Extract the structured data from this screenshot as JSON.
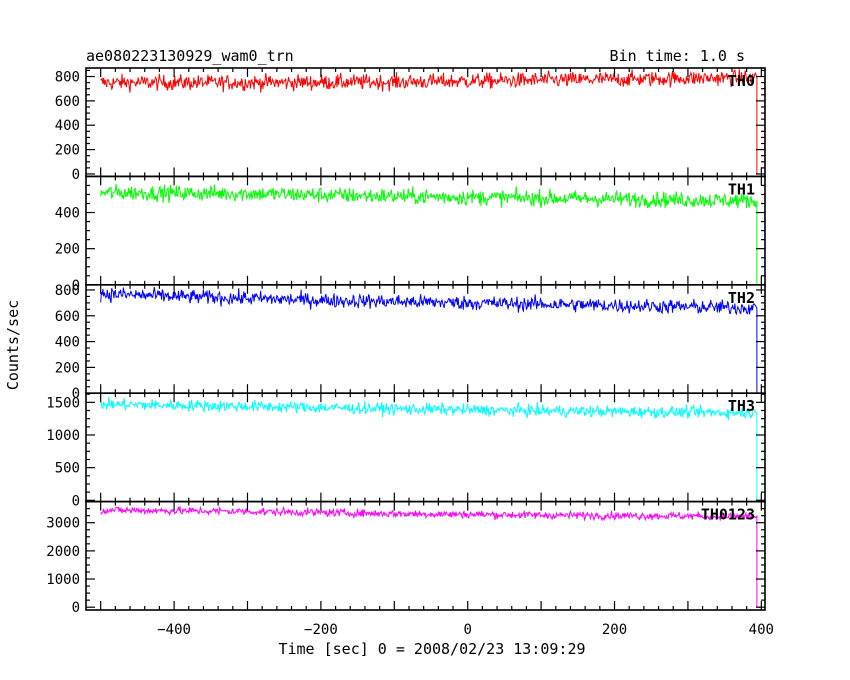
{
  "chart_data": {
    "type": "line",
    "title": "ae080223130929_wam0_trn",
    "subtitle": "Bin time: 1.0 s",
    "xlabel": "Time [sec] 0 = 2008/02/23 13:09:29",
    "ylabel": "Counts/sec",
    "xlim": [
      -520,
      405
    ],
    "x_ticks": [
      -400,
      -200,
      0,
      200,
      400
    ],
    "x_tick_labels": [
      "−400",
      "−200",
      "0",
      "200",
      "400"
    ],
    "x_start": -500,
    "x_end": 392,
    "x_drop": 394,
    "x_stub": 400,
    "grid": false,
    "panels": [
      {
        "name": "TH0",
        "color": "#ff0000",
        "ylim": [
          -20,
          870
        ],
        "y_ticks": [
          0,
          200,
          400,
          600,
          800
        ],
        "trend": [
          [
            -500,
            750
          ],
          [
            -300,
            750
          ],
          [
            -100,
            755
          ],
          [
            100,
            770
          ],
          [
            300,
            785
          ],
          [
            392,
            790
          ]
        ],
        "noise": 32,
        "stub_value": 0
      },
      {
        "name": "TH1",
        "color": "#00ff00",
        "ylim": [
          0,
          600
        ],
        "y_ticks": [
          0,
          200,
          400
        ],
        "trend": [
          [
            -500,
            510
          ],
          [
            -300,
            505
          ],
          [
            -100,
            490
          ],
          [
            100,
            480
          ],
          [
            300,
            470
          ],
          [
            392,
            465
          ]
        ],
        "noise": 22,
        "stub_value": 0
      },
      {
        "name": "TH2",
        "color": "#0000ff",
        "ylim": [
          0,
          840
        ],
        "y_ticks": [
          0,
          200,
          400,
          600,
          800
        ],
        "trend": [
          [
            -500,
            770
          ],
          [
            -400,
            750
          ],
          [
            -200,
            720
          ],
          [
            0,
            700
          ],
          [
            200,
            680
          ],
          [
            392,
            660
          ]
        ],
        "noise": 28,
        "stub_value": 0
      },
      {
        "name": "TH3",
        "color": "#00ffff",
        "ylim": [
          -20,
          1640
        ],
        "y_ticks": [
          0,
          500,
          1000,
          1500
        ],
        "y_tick_labels": [
          "0",
          "500",
          "1000",
          "1500"
        ],
        "trend": [
          [
            -500,
            1470
          ],
          [
            -300,
            1440
          ],
          [
            -100,
            1400
          ],
          [
            100,
            1370
          ],
          [
            300,
            1350
          ],
          [
            392,
            1340
          ]
        ],
        "noise": 45,
        "stub_value": 0
      },
      {
        "name": "TH0123",
        "color": "#ff00ff",
        "ylim": [
          -100,
          3750
        ],
        "y_ticks": [
          0,
          1000,
          2000,
          3000
        ],
        "y_tick_labels": [
          "0",
          "1000",
          "2000",
          "3000"
        ],
        "trend": [
          [
            -500,
            3450
          ],
          [
            -300,
            3400
          ],
          [
            -100,
            3320
          ],
          [
            100,
            3270
          ],
          [
            300,
            3240
          ],
          [
            392,
            3230
          ]
        ],
        "noise": 70,
        "stub_value": 0
      }
    ]
  }
}
